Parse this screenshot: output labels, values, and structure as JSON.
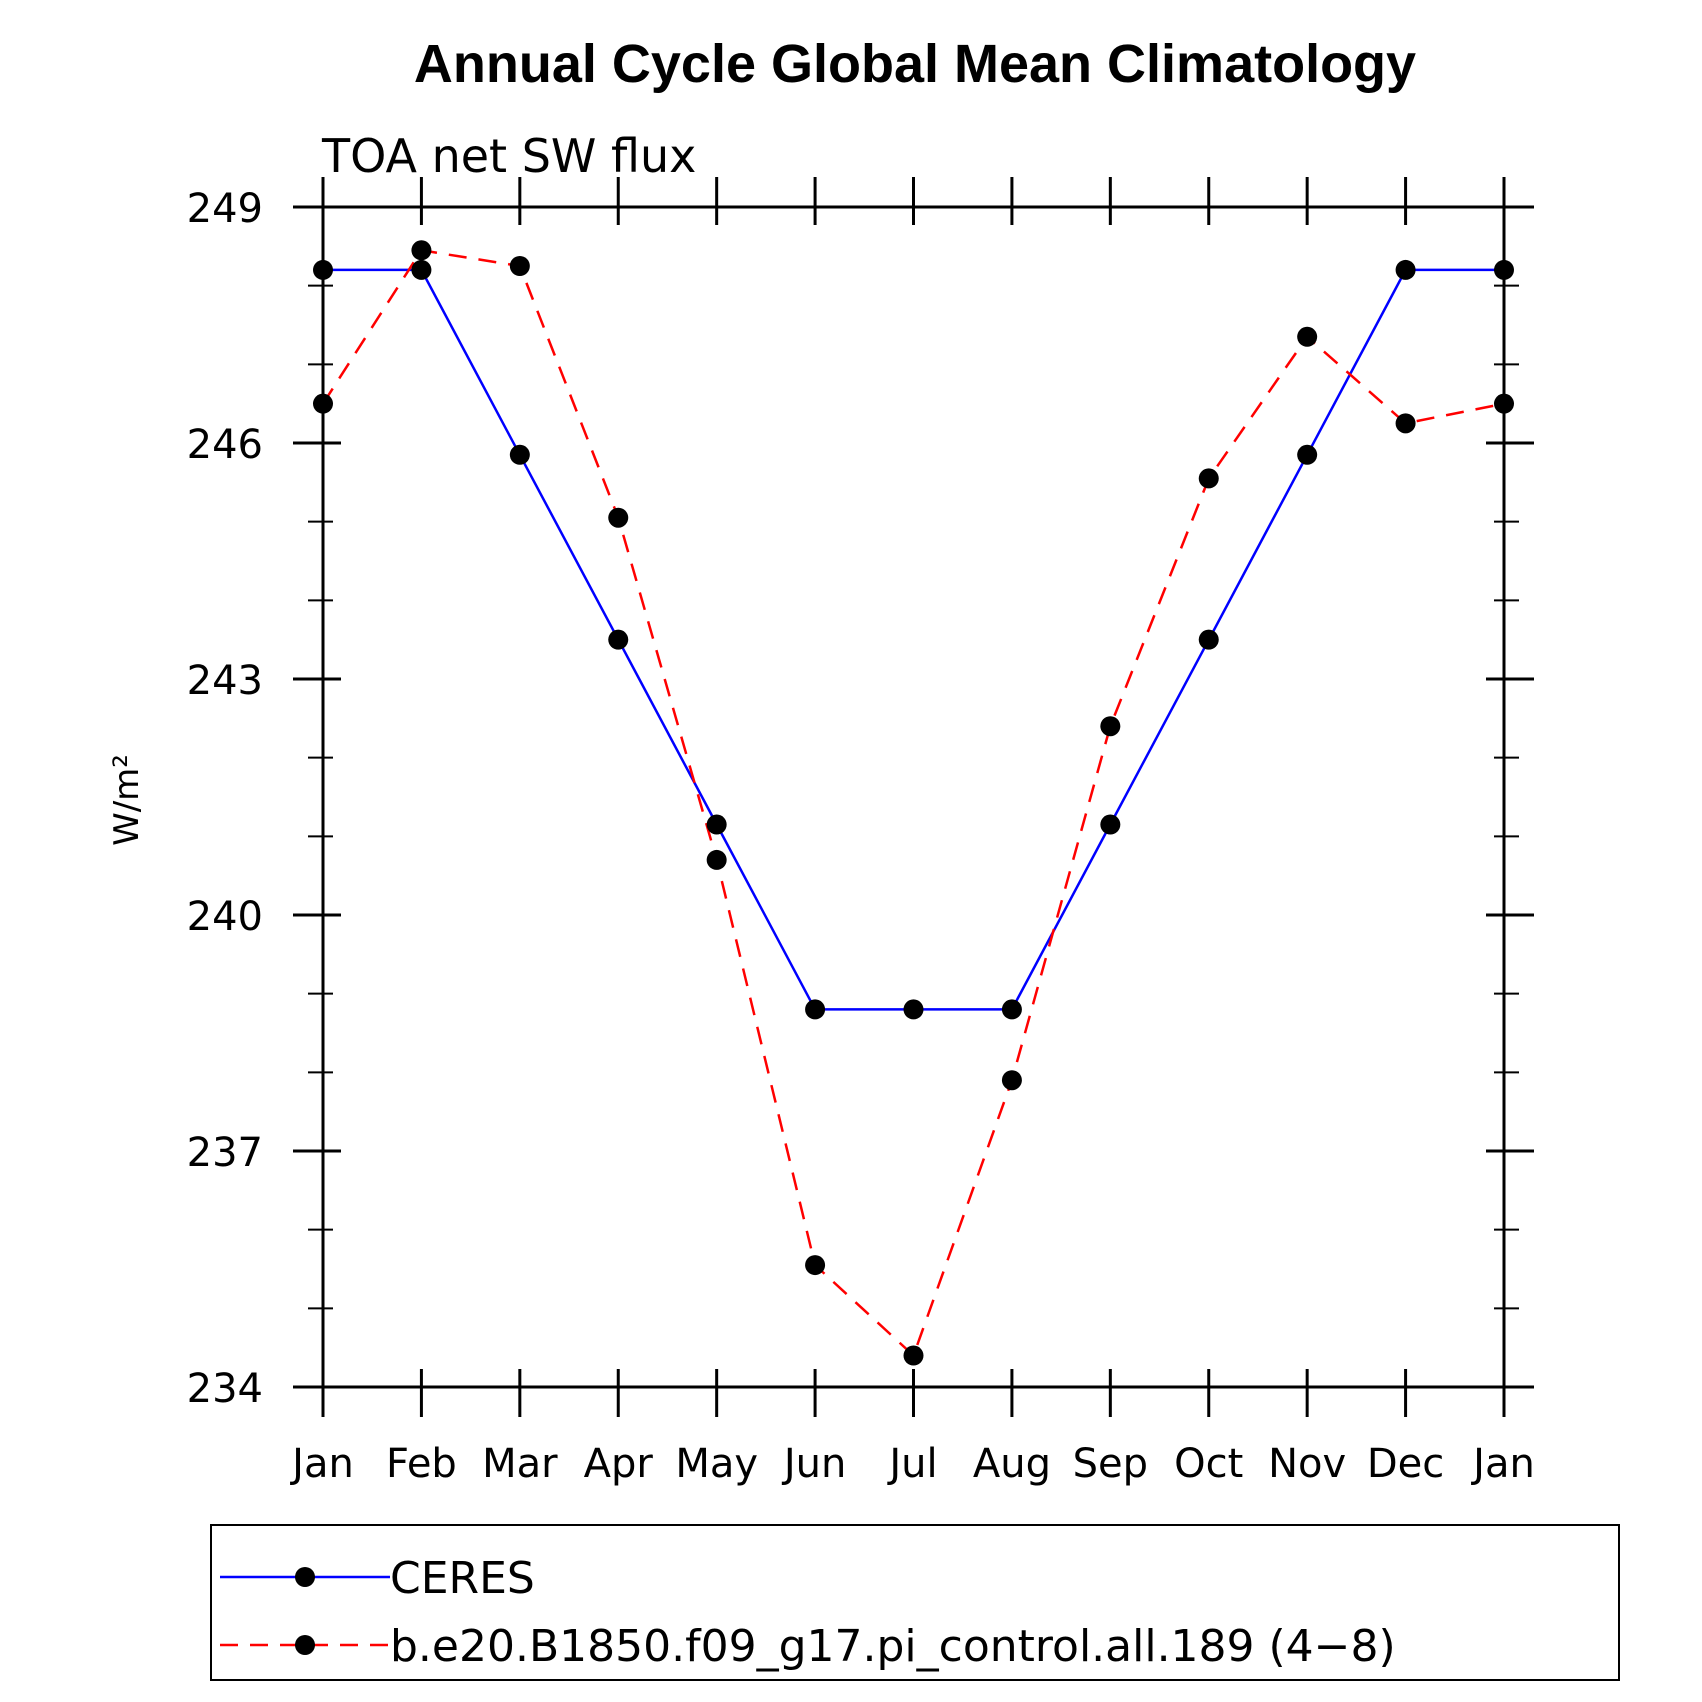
{
  "chart_data": {
    "type": "line",
    "title": "Annual Cycle Global Mean Climatology",
    "subtitle": "TOA net SW flux",
    "ylabel": "W/m²",
    "xlabel": "",
    "categories": [
      "Jan",
      "Feb",
      "Mar",
      "Apr",
      "May",
      "Jun",
      "Jul",
      "Aug",
      "Sep",
      "Oct",
      "Nov",
      "Dec",
      "Jan"
    ],
    "ylim": [
      234,
      249
    ],
    "yticks": [
      "234",
      "237",
      "240",
      "243",
      "246",
      "249"
    ],
    "grid": false,
    "legend_position": "bottom",
    "series": [
      {
        "name": "CERES",
        "color": "#0000ff",
        "dashed": false,
        "values": [
          248.2,
          248.2,
          245.85,
          243.5,
          241.15,
          238.8,
          238.8,
          238.8,
          241.15,
          243.5,
          245.85,
          248.2,
          248.2
        ]
      },
      {
        "name": "b.e20.B1850.f09_g17.pi_control.all.189 (4−8)",
        "color": "#ff0000",
        "dashed": true,
        "values": [
          246.5,
          248.45,
          248.25,
          245.05,
          240.7,
          235.55,
          234.4,
          237.9,
          242.4,
          245.55,
          247.35,
          246.25,
          246.5
        ]
      }
    ]
  }
}
